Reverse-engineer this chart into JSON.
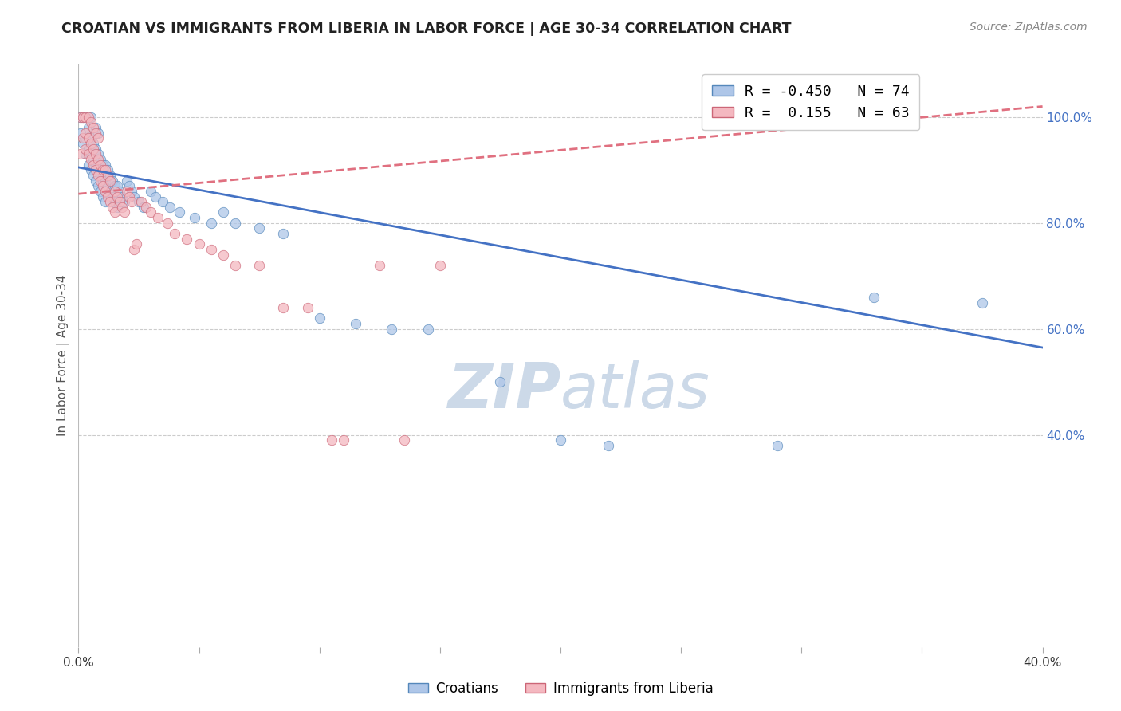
{
  "title": "CROATIAN VS IMMIGRANTS FROM LIBERIA IN LABOR FORCE | AGE 30-34 CORRELATION CHART",
  "source": "Source: ZipAtlas.com",
  "ylabel": "In Labor Force | Age 30-34",
  "xlim": [
    0.0,
    0.4
  ],
  "ylim": [
    0.0,
    1.1
  ],
  "x_ticks": [
    0.0,
    0.05,
    0.1,
    0.15,
    0.2,
    0.25,
    0.3,
    0.35,
    0.4
  ],
  "x_tick_labels": [
    "0.0%",
    "",
    "",
    "",
    "",
    "",
    "",
    "",
    "40.0%"
  ],
  "y_ticks_right": [
    0.4,
    0.6,
    0.8,
    1.0
  ],
  "y_tick_labels_right": [
    "40.0%",
    "60.0%",
    "80.0%",
    "100.0%"
  ],
  "grid_color": "#cccccc",
  "background_color": "#ffffff",
  "watermark_color": "#ccd9e8",
  "croatians_color": "#aec6e8",
  "croatians_edge_color": "#5588bb",
  "liberia_color": "#f4b8c0",
  "liberia_edge_color": "#cc6677",
  "croatians_R": -0.45,
  "croatians_N": 74,
  "liberia_R": 0.155,
  "liberia_N": 63,
  "blue_line_color": "#4472c4",
  "pink_line_color": "#e07080",
  "blue_trend_x0": 0.0,
  "blue_trend_y0": 0.905,
  "blue_trend_x1": 0.4,
  "blue_trend_y1": 0.565,
  "pink_trend_x0": 0.0,
  "pink_trend_y0": 0.855,
  "pink_trend_x1": 0.4,
  "pink_trend_y1": 1.02,
  "marker_size": 80,
  "croatians_scatter_x": [
    0.001,
    0.001,
    0.002,
    0.002,
    0.003,
    0.003,
    0.003,
    0.004,
    0.004,
    0.004,
    0.005,
    0.005,
    0.005,
    0.005,
    0.006,
    0.006,
    0.006,
    0.007,
    0.007,
    0.007,
    0.007,
    0.008,
    0.008,
    0.008,
    0.008,
    0.009,
    0.009,
    0.009,
    0.01,
    0.01,
    0.01,
    0.011,
    0.011,
    0.011,
    0.012,
    0.012,
    0.013,
    0.013,
    0.014,
    0.014,
    0.015,
    0.015,
    0.016,
    0.016,
    0.017,
    0.018,
    0.019,
    0.02,
    0.021,
    0.022,
    0.023,
    0.025,
    0.027,
    0.03,
    0.032,
    0.035,
    0.038,
    0.042,
    0.048,
    0.055,
    0.06,
    0.065,
    0.075,
    0.085,
    0.1,
    0.115,
    0.13,
    0.145,
    0.175,
    0.2,
    0.22,
    0.29,
    0.33,
    0.375
  ],
  "croatians_scatter_y": [
    0.97,
    1.0,
    0.95,
    1.0,
    0.93,
    0.96,
    1.0,
    0.91,
    0.94,
    0.98,
    0.9,
    0.93,
    0.96,
    1.0,
    0.89,
    0.92,
    0.95,
    0.88,
    0.91,
    0.94,
    0.98,
    0.87,
    0.9,
    0.93,
    0.97,
    0.86,
    0.89,
    0.92,
    0.85,
    0.88,
    0.91,
    0.84,
    0.88,
    0.91,
    0.87,
    0.9,
    0.86,
    0.89,
    0.85,
    0.88,
    0.84,
    0.87,
    0.83,
    0.87,
    0.86,
    0.85,
    0.84,
    0.88,
    0.87,
    0.86,
    0.85,
    0.84,
    0.83,
    0.86,
    0.85,
    0.84,
    0.83,
    0.82,
    0.81,
    0.8,
    0.82,
    0.8,
    0.79,
    0.78,
    0.62,
    0.61,
    0.6,
    0.6,
    0.5,
    0.39,
    0.38,
    0.38,
    0.66,
    0.65
  ],
  "liberia_scatter_x": [
    0.001,
    0.001,
    0.002,
    0.002,
    0.003,
    0.003,
    0.003,
    0.004,
    0.004,
    0.004,
    0.005,
    0.005,
    0.005,
    0.006,
    0.006,
    0.006,
    0.007,
    0.007,
    0.007,
    0.008,
    0.008,
    0.008,
    0.009,
    0.009,
    0.01,
    0.01,
    0.011,
    0.011,
    0.012,
    0.012,
    0.013,
    0.013,
    0.014,
    0.015,
    0.015,
    0.016,
    0.017,
    0.018,
    0.019,
    0.02,
    0.021,
    0.022,
    0.023,
    0.024,
    0.026,
    0.028,
    0.03,
    0.033,
    0.037,
    0.04,
    0.045,
    0.05,
    0.055,
    0.06,
    0.065,
    0.075,
    0.085,
    0.095,
    0.105,
    0.11,
    0.125,
    0.135,
    0.15
  ],
  "liberia_scatter_y": [
    0.93,
    1.0,
    0.96,
    1.0,
    0.94,
    0.97,
    1.0,
    0.93,
    0.96,
    1.0,
    0.92,
    0.95,
    0.99,
    0.91,
    0.94,
    0.98,
    0.9,
    0.93,
    0.97,
    0.89,
    0.92,
    0.96,
    0.88,
    0.91,
    0.87,
    0.9,
    0.86,
    0.9,
    0.85,
    0.89,
    0.84,
    0.88,
    0.83,
    0.82,
    0.86,
    0.85,
    0.84,
    0.83,
    0.82,
    0.86,
    0.85,
    0.84,
    0.75,
    0.76,
    0.84,
    0.83,
    0.82,
    0.81,
    0.8,
    0.78,
    0.77,
    0.76,
    0.75,
    0.74,
    0.72,
    0.72,
    0.64,
    0.64,
    0.39,
    0.39,
    0.72,
    0.39,
    0.72
  ]
}
